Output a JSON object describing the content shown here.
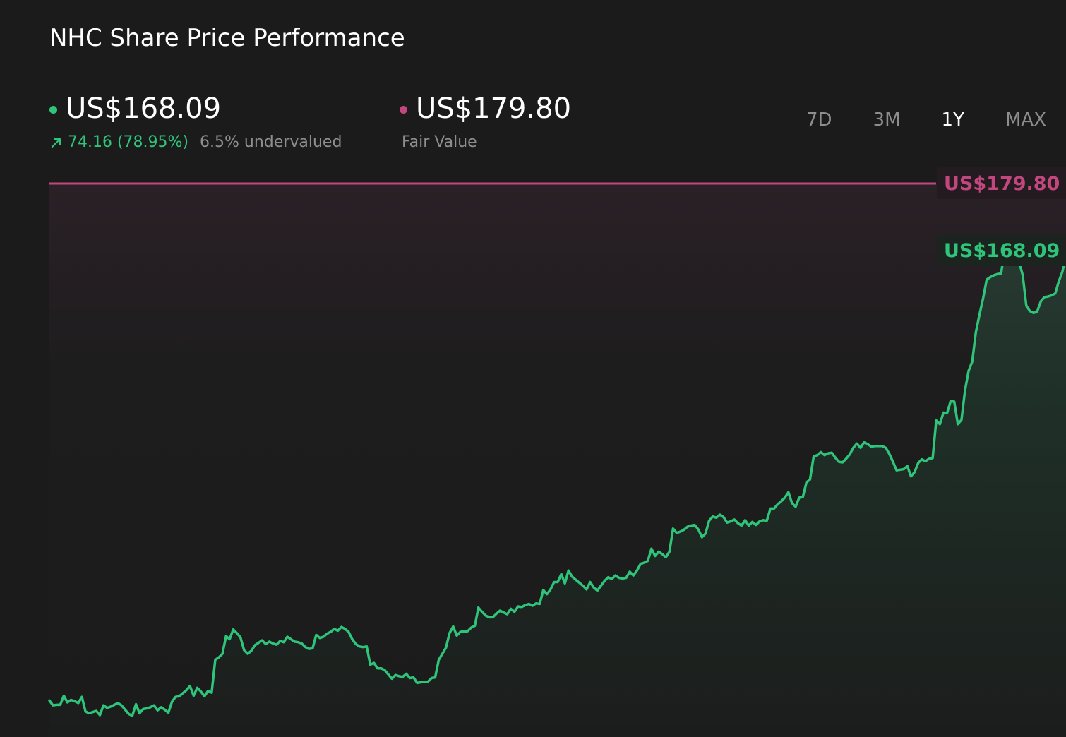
{
  "title": "NHC Share Price Performance",
  "current": {
    "price": "US$168.09",
    "change": "74.16 (78.95%)",
    "valuation": "6.5% undervalued"
  },
  "fair_value": {
    "price": "US$179.80",
    "label": "Fair Value"
  },
  "range_tabs": [
    {
      "label": "7D",
      "active": false
    },
    {
      "label": "3M",
      "active": false
    },
    {
      "label": "1Y",
      "active": true
    },
    {
      "label": "MAX",
      "active": false
    }
  ],
  "colors": {
    "background": "#1b1b1b",
    "price_line": "#2fc47a",
    "fair_value_line": "#c2477e",
    "muted_text": "#8e8e8e",
    "active_tab": "#ffffff"
  },
  "chart_data": {
    "type": "line",
    "title": "NHC Share Price Performance",
    "xlabel": "",
    "ylabel": "",
    "ylim": [
      92,
      181
    ],
    "grid": false,
    "fair_value": 179.8,
    "fair_value_label": "US$179.80",
    "last_price": 168.09,
    "last_price_label": "US$168.09",
    "series": [
      {
        "values": [
          94.7,
          93.9,
          94.0,
          94.0,
          95.5,
          94.4,
          94.8,
          94.6,
          94.3,
          95.3,
          92.9,
          92.6,
          92.8,
          93.0,
          92.3,
          93.9,
          93.5,
          93.7,
          94.0,
          94.3,
          93.9,
          93.2,
          92.5,
          92.2,
          94.1,
          92.6,
          93.3,
          93.4,
          93.6,
          93.9,
          93.1,
          93.6,
          93.2,
          92.7,
          94.5,
          95.3,
          95.4,
          95.9,
          96.4,
          97.1,
          95.5,
          96.8,
          96.2,
          95.4,
          96.3,
          96.0,
          101.4,
          101.8,
          102.4,
          105.3,
          104.8,
          106.4,
          105.8,
          105.1,
          103.0,
          102.4,
          102.9,
          103.8,
          104.2,
          104.6,
          104.0,
          104.4,
          104.1,
          103.9,
          104.5,
          104.3,
          105.2,
          104.8,
          104.4,
          104.3,
          104.1,
          103.5,
          103.2,
          103.3,
          105.5,
          105.0,
          105.2,
          105.7,
          106.0,
          106.5,
          106.2,
          106.8,
          106.5,
          106.0,
          104.8,
          104.0,
          103.6,
          103.5,
          103.6,
          100.6,
          100.9,
          100.0,
          100.0,
          99.7,
          99.0,
          98.3,
          98.9,
          98.7,
          98.6,
          99.1,
          98.4,
          98.5,
          97.6,
          97.7,
          97.8,
          97.8,
          98.4,
          98.5,
          101.4,
          102.4,
          103.4,
          105.8,
          106.9,
          105.4,
          106.0,
          106.1,
          106.1,
          106.7,
          107.0,
          110.0,
          109.3,
          108.7,
          108.4,
          108.4,
          109.0,
          109.5,
          109.2,
          108.9,
          109.8,
          109.3,
          110.2,
          110.1,
          110.4,
          110.6,
          110.3,
          110.7,
          110.6,
          112.9,
          112.2,
          113.0,
          114.2,
          114.2,
          115.5,
          114.0,
          116.1,
          115.1,
          114.6,
          114.1,
          113.6,
          113.0,
          114.2,
          113.3,
          112.8,
          113.6,
          114.4,
          115.0,
          114.7,
          115.3,
          114.9,
          114.8,
          114.9,
          115.9,
          115.3,
          116.1,
          117.2,
          117.4,
          117.7,
          119.7,
          118.5,
          119.2,
          118.8,
          118.3,
          119.2,
          123.0,
          122.3,
          122.5,
          122.8,
          123.3,
          123.5,
          123.6,
          122.9,
          121.6,
          122.2,
          124.3,
          125.0,
          124.8,
          125.3,
          124.9,
          124.0,
          124.2,
          124.5,
          123.9,
          123.5,
          124.4,
          123.5,
          124.1,
          123.6,
          124.2,
          124.4,
          124.3,
          126.3,
          126.3,
          127.0,
          127.5,
          128.1,
          129.0,
          127.2,
          126.6,
          128.1,
          128.2,
          130.6,
          131.1,
          134.9,
          135.1,
          135.6,
          135.1,
          135.4,
          135.5,
          134.7,
          134.0,
          133.9,
          134.5,
          135.2,
          136.3,
          137.0,
          136.3,
          137.2,
          136.9,
          136.5,
          136.6,
          136.6,
          136.6,
          136.3,
          135.3,
          134.0,
          132.6,
          132.7,
          132.8,
          133.3,
          131.6,
          132.3,
          133.8,
          134.4,
          134.1,
          134.5,
          134.6,
          140.8,
          140.2,
          142.1,
          142.0,
          144.0,
          143.9,
          140.2,
          140.9,
          145.8,
          149.0,
          150.5,
          155.3,
          158.2,
          160.9,
          164.0,
          164.4,
          164.7,
          164.9,
          165.0,
          169.0,
          169.1,
          169.0,
          168.3,
          166.9,
          164.7,
          159.7,
          158.8,
          158.5,
          158.7,
          160.4,
          161.1,
          161.2,
          161.4,
          161.7,
          163.7,
          165.3,
          168.09
        ]
      }
    ]
  }
}
